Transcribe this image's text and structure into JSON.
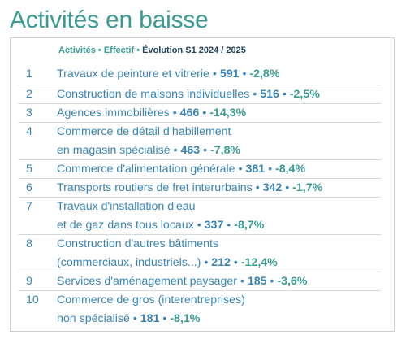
{
  "title": "Activités en baisse",
  "legend": {
    "activites": "Activités",
    "effectif": "Effectif",
    "evolution": "Évolution S1 2024 / 2025",
    "separator": "•"
  },
  "rows": [
    {
      "rank": "1",
      "line1": "Travaux de peinture et vitrerie",
      "line2": "",
      "effectif": "591",
      "evolution": "-2,8%"
    },
    {
      "rank": "2",
      "line1": "Construction de maisons individuelles",
      "line2": "",
      "effectif": "516",
      "evolution": "-2,5%"
    },
    {
      "rank": "3",
      "line1": "Agences immobilières",
      "line2": "",
      "effectif": "466",
      "evolution": "-14,3%"
    },
    {
      "rank": "4",
      "line1": "Commerce de détail d’habillement",
      "line2": "en magasin spécialisé",
      "effectif": "463",
      "evolution": "-7,8%"
    },
    {
      "rank": "5",
      "line1": "Commerce d'alimentation générale",
      "line2": "",
      "effectif": "381",
      "evolution": "-8,4%"
    },
    {
      "rank": "6",
      "line1": "Transports routiers de fret interurbains",
      "line2": "",
      "effectif": "342",
      "evolution": "-1,7%"
    },
    {
      "rank": "7",
      "line1": "Travaux d'installation d'eau",
      "line2": "et de gaz dans tous locaux",
      "effectif": "337",
      "evolution": "-8,7%"
    },
    {
      "rank": "8",
      "line1": "Construction d'autres bâtiments",
      "line2": "(commerciaux, industriels...)",
      "effectif": "212",
      "evolution": "-12,4%"
    },
    {
      "rank": "9",
      "line1": "Services d'aménagement paysager",
      "line2": "",
      "effectif": "185",
      "evolution": "-3,6%"
    },
    {
      "rank": "10",
      "line1": "Commerce de gros (interentreprises)",
      "line2": "non spécialisé",
      "effectif": "181",
      "evolution": "-8,1%"
    }
  ],
  "colors": {
    "title": "#3a9b94",
    "label": "#3a84b5",
    "evolution": "#3a9b94",
    "legend_dark": "#1f3f5a",
    "divider": "#d5d9dd",
    "border": "#c9cfd4"
  }
}
